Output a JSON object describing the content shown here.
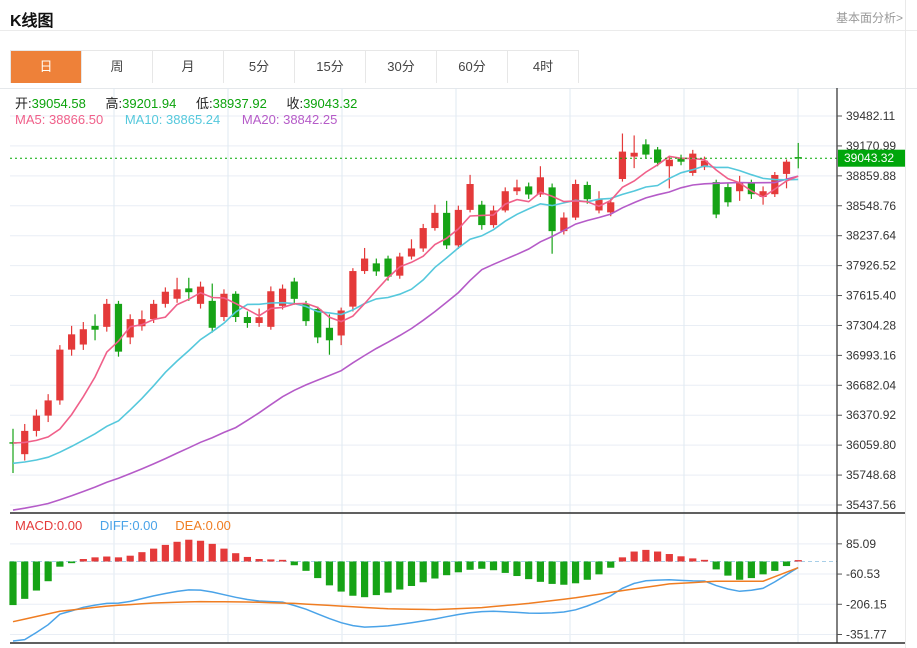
{
  "header": {
    "title": "K线图",
    "link": "基本面分析>"
  },
  "tabs": [
    {
      "label": "日",
      "active": true
    },
    {
      "label": "周",
      "active": false
    },
    {
      "label": "月",
      "active": false
    },
    {
      "label": "5分",
      "active": false
    },
    {
      "label": "15分",
      "active": false
    },
    {
      "label": "30分",
      "active": false
    },
    {
      "label": "60分",
      "active": false
    },
    {
      "label": "4时",
      "active": false
    }
  ],
  "readout": {
    "open_label": "开:",
    "open": "39054.58",
    "high_label": "高:",
    "high": "39201.94",
    "low_label": "低:",
    "low": "38937.92",
    "close_label": "收:",
    "close": "39043.32"
  },
  "ma_readout": {
    "ma5_label": "MA5:",
    "ma5": "38866.50",
    "ma10_label": "MA10:",
    "ma10": "38865.24",
    "ma20_label": "MA20:",
    "ma20": "38842.25"
  },
  "macd_readout": {
    "macd_label": "MACD:",
    "macd": "0.00",
    "diff_label": "DIFF:",
    "diff": "0.00",
    "dea_label": "DEA:",
    "dea": "0.00"
  },
  "colors": {
    "up": "#e43a3a",
    "down": "#16a316",
    "ma5": "#f0608a",
    "ma10": "#55c8dc",
    "ma20": "#b55bc8",
    "diff": "#4aa3e8",
    "dea": "#ef7d22",
    "price_line": "#00a800",
    "tag_bg": "#00a60b",
    "tag_text": "#ffffff",
    "accent": "#ee8139",
    "axis_text": "#333333",
    "grid": "#e9eef5",
    "vgrid": "#dfe9f2",
    "zero_dash": "#a8cfe8",
    "dark_border": "#2b2b2b"
  },
  "chart_data": {
    "type": "candlestick",
    "title": "K线图 日K",
    "price_axis": {
      "ticks": [
        "39482.11",
        "39170.99",
        "38859.88",
        "38548.76",
        "38237.64",
        "37926.52",
        "37615.40",
        "37304.28",
        "36993.16",
        "36682.04",
        "36370.92",
        "36059.80",
        "35748.68",
        "35437.56"
      ],
      "max": 39482.11,
      "min": 35437.56
    },
    "current_price": 39043.32,
    "current_price_label": "39043.32",
    "candles": [
      [
        36090,
        36230,
        35770,
        36080
      ],
      [
        35966,
        36280,
        35900,
        36208
      ],
      [
        36208,
        36430,
        36150,
        36367
      ],
      [
        36367,
        36590,
        36300,
        36525
      ],
      [
        36525,
        37100,
        36480,
        37053
      ],
      [
        37053,
        37300,
        36990,
        37212
      ],
      [
        37106,
        37340,
        37050,
        37265
      ],
      [
        37300,
        37420,
        37150,
        37260
      ],
      [
        37290,
        37580,
        37240,
        37529
      ],
      [
        37529,
        37560,
        36980,
        37032
      ],
      [
        37180,
        37420,
        37110,
        37370
      ],
      [
        37296,
        37460,
        37250,
        37370
      ],
      [
        37370,
        37570,
        37330,
        37529
      ],
      [
        37529,
        37700,
        37490,
        37655
      ],
      [
        37582,
        37800,
        37540,
        37680
      ],
      [
        37690,
        37800,
        37560,
        37650
      ],
      [
        37529,
        37760,
        37480,
        37708
      ],
      [
        37560,
        37740,
        37230,
        37280
      ],
      [
        37392,
        37680,
        37350,
        37634
      ],
      [
        37634,
        37660,
        37340,
        37392
      ],
      [
        37392,
        37450,
        37280,
        37330
      ],
      [
        37330,
        37480,
        37290,
        37390
      ],
      [
        37290,
        37710,
        37260,
        37660
      ],
      [
        37508,
        37730,
        37470,
        37687
      ],
      [
        37761,
        37800,
        37520,
        37581
      ],
      [
        37529,
        37560,
        37300,
        37349
      ],
      [
        37476,
        37500,
        37120,
        37180
      ],
      [
        37280,
        37420,
        37000,
        37150
      ],
      [
        37200,
        37490,
        37100,
        37460
      ],
      [
        37500,
        37900,
        37450,
        37870
      ],
      [
        37870,
        38110,
        37840,
        38000
      ],
      [
        37950,
        38000,
        37820,
        37866
      ],
      [
        38000,
        38030,
        37770,
        37812
      ],
      [
        37822,
        38060,
        37790,
        38021
      ],
      [
        38021,
        38200,
        37990,
        38105
      ],
      [
        38105,
        38360,
        38070,
        38317
      ],
      [
        38317,
        38560,
        38290,
        38475
      ],
      [
        38475,
        38600,
        38100,
        38137
      ],
      [
        38137,
        38550,
        38100,
        38506
      ],
      [
        38506,
        38870,
        38480,
        38775
      ],
      [
        38560,
        38600,
        38300,
        38348
      ],
      [
        38348,
        38550,
        38320,
        38500
      ],
      [
        38500,
        38740,
        38480,
        38700
      ],
      [
        38700,
        38820,
        38660,
        38740
      ],
      [
        38750,
        38790,
        38620,
        38666
      ],
      [
        38666,
        38960,
        38640,
        38845
      ],
      [
        38740,
        38780,
        38050,
        38285
      ],
      [
        38285,
        38480,
        38250,
        38426
      ],
      [
        38426,
        38820,
        38400,
        38775
      ],
      [
        38765,
        38800,
        38570,
        38617
      ],
      [
        38500,
        38700,
        38470,
        38617
      ],
      [
        38480,
        38620,
        38440,
        38585
      ],
      [
        38827,
        39300,
        38800,
        39112
      ],
      [
        39060,
        39280,
        38940,
        39100
      ],
      [
        39187,
        39240,
        39040,
        39081
      ],
      [
        39134,
        39160,
        38960,
        38996
      ],
      [
        38960,
        39070,
        38730,
        39028
      ],
      [
        39050,
        39080,
        38970,
        39007
      ],
      [
        38890,
        39130,
        38860,
        39091
      ],
      [
        38950,
        39060,
        38920,
        39017
      ],
      [
        38795,
        38820,
        38420,
        38458
      ],
      [
        38743,
        38780,
        38540,
        38585
      ],
      [
        38700,
        38860,
        38600,
        38785
      ],
      [
        38785,
        38820,
        38620,
        38669
      ],
      [
        38640,
        38750,
        38560,
        38700
      ],
      [
        38669,
        38900,
        38640,
        38869
      ],
      [
        38880,
        39030,
        38730,
        39007
      ],
      [
        39054.58,
        39201.94,
        38937.92,
        39043.32
      ]
    ],
    "ma_anchors": {
      "ma5": 36082,
      "ma10": 35871,
      "ma20": 35385
    },
    "macd": {
      "ticks": [
        "85.09",
        "-60.53",
        "-206.15",
        "-351.77"
      ],
      "hist": [
        -210,
        -180,
        -140,
        -95,
        -25,
        -8,
        12,
        20,
        24,
        20,
        28,
        45,
        62,
        80,
        95,
        105,
        100,
        85,
        62,
        40,
        22,
        12,
        10,
        8,
        -18,
        -45,
        -80,
        -115,
        -145,
        -165,
        -172,
        -162,
        -150,
        -135,
        -118,
        -100,
        -82,
        -66,
        -52,
        -40,
        -35,
        -42,
        -55,
        -70,
        -85,
        -98,
        -108,
        -112,
        -105,
        -88,
        -62,
        -30,
        20,
        48,
        56,
        48,
        36,
        25,
        15,
        8,
        -38,
        -68,
        -88,
        -80,
        -62,
        -45,
        -22,
        2
      ],
      "dea_waypoints": [
        [
          0,
          -290
        ],
        [
          4,
          -240
        ],
        [
          8,
          -215
        ],
        [
          12,
          -200
        ],
        [
          16,
          -193
        ],
        [
          20,
          -195
        ],
        [
          24,
          -202
        ],
        [
          28,
          -215
        ],
        [
          32,
          -228
        ],
        [
          36,
          -232
        ],
        [
          40,
          -222
        ],
        [
          44,
          -202
        ],
        [
          48,
          -175
        ],
        [
          52,
          -140
        ],
        [
          56,
          -108
        ],
        [
          60,
          -95
        ],
        [
          64,
          -95
        ],
        [
          67,
          -30
        ]
      ]
    }
  }
}
